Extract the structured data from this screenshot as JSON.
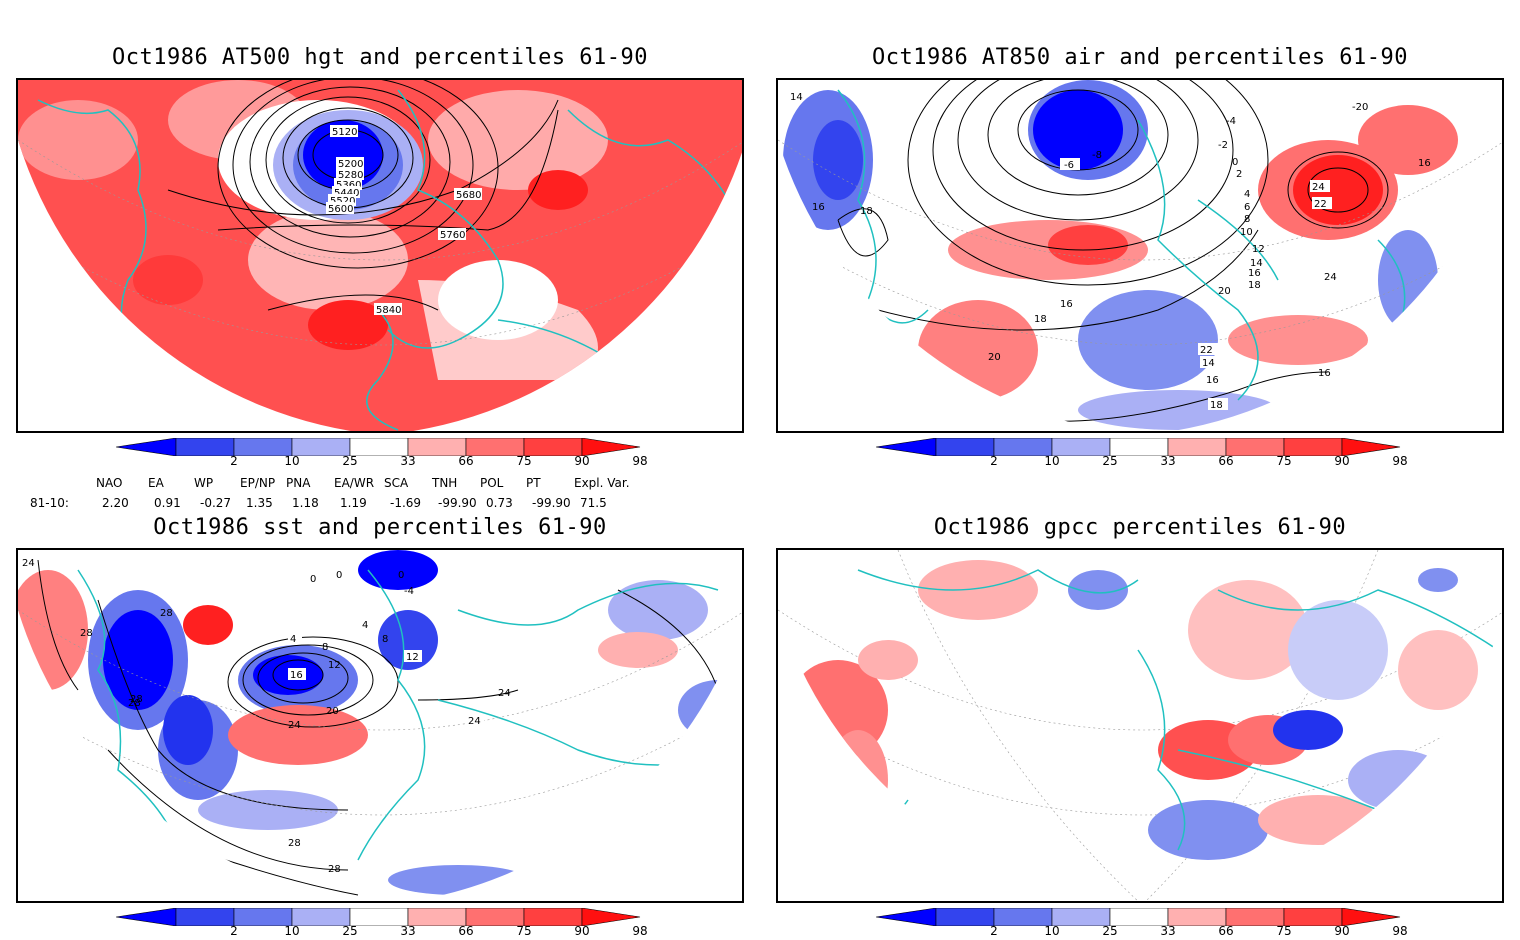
{
  "panels": [
    {
      "title": "Oct1986 AT500 hgt and percentiles 61-90",
      "contour_labels": [
        "5120",
        "5200",
        "5280",
        "5360",
        "5440",
        "5520",
        "5600",
        "5680",
        "5760",
        "5840"
      ]
    },
    {
      "title": "Oct1986 AT850 air and percentiles 61-90",
      "contour_labels": [
        "14",
        "16",
        "18",
        "-6",
        "-8",
        "-4",
        "-2",
        "0",
        "2",
        "4",
        "6",
        "8",
        "10",
        "12",
        "14",
        "16",
        "18",
        "20",
        "22",
        "24",
        "-20",
        "16",
        "22",
        "24",
        "16",
        "18",
        "20",
        "22",
        "14",
        "16",
        "16",
        "18",
        "16"
      ]
    },
    {
      "title": "Oct1986 sst and percentiles 61-90",
      "contour_labels": [
        "24",
        "28",
        "28",
        "28",
        "0",
        "0",
        "0",
        "-4",
        "4",
        "8",
        "4",
        "8",
        "12",
        "16",
        "12",
        "20",
        "24",
        "24",
        "28",
        "28",
        "28",
        "24"
      ]
    },
    {
      "title": "Oct1986 gpcc percentiles 61-90",
      "contour_labels": []
    }
  ],
  "colorbar": {
    "labels": [
      "2",
      "10",
      "25",
      "33",
      "66",
      "75",
      "90",
      "98"
    ],
    "colors": [
      "#0000ff",
      "#3344ee",
      "#6677ee",
      "#aab0f5",
      "#ffffff",
      "#ffb0b0",
      "#ff7070",
      "#ff4040",
      "#ff1010"
    ]
  },
  "indices": {
    "header": [
      "NAO",
      "EA",
      "WP",
      "EP/NP",
      "PNA",
      "EA/WR",
      "SCA",
      "TNH",
      "POL",
      "PT",
      "Expl. Var."
    ],
    "row_label": "81-10:",
    "values": [
      "2.20",
      "0.91",
      "-0.27",
      "1.35",
      "1.18",
      "1.19",
      "-1.69",
      "-99.90",
      "0.73",
      "-99.90",
      "71.5"
    ]
  },
  "colors": {
    "coastline": "#20c0c0",
    "positive": "#ff3030",
    "negative": "#1020ee",
    "contour": "#000000"
  }
}
